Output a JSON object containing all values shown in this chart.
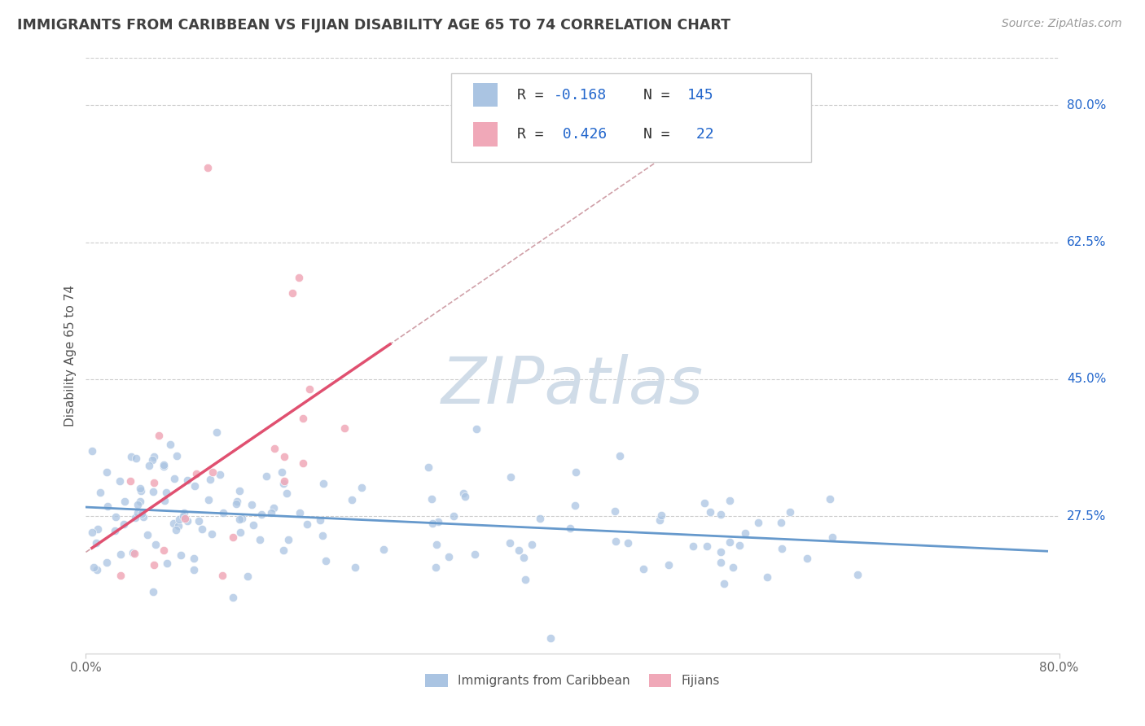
{
  "title": "IMMIGRANTS FROM CARIBBEAN VS FIJIAN DISABILITY AGE 65 TO 74 CORRELATION CHART",
  "source": "Source: ZipAtlas.com",
  "ylabel": "Disability Age 65 to 74",
  "xlim": [
    0.0,
    0.8
  ],
  "ylim": [
    0.1,
    0.86
  ],
  "y_ticks": [
    0.275,
    0.45,
    0.625,
    0.8
  ],
  "y_tick_labels": [
    "27.5%",
    "45.0%",
    "62.5%",
    "80.0%"
  ],
  "x_ticks": [
    0.0,
    0.8
  ],
  "x_tick_labels": [
    "0.0%",
    "80.0%"
  ],
  "r_caribbean": -0.168,
  "n_caribbean": 145,
  "r_fijian": 0.426,
  "n_fijian": 22,
  "caribbean_color": "#aac4e2",
  "fijian_color": "#f0a8b8",
  "trend_caribbean_color": "#6699cc",
  "trend_fijian_color": "#e05070",
  "dashed_line_color": "#d0a0a8",
  "watermark_color": "#d0dce8",
  "grid_color": "#cccccc",
  "title_color": "#404040",
  "r_value_color": "#2266cc",
  "background_color": "#ffffff"
}
